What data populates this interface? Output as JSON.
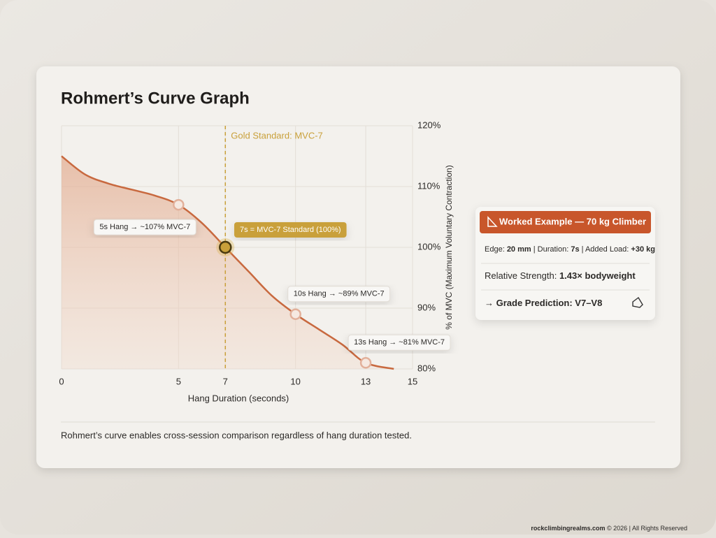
{
  "chart_data": {
    "type": "area",
    "title": "Rohmert’s Curve Graph",
    "x_label": "Hang Duration (seconds)",
    "y_label": "% of MVC (Maximum Voluntary Contraction)",
    "x": [
      0,
      1,
      2,
      3,
      4,
      5,
      6,
      7,
      8,
      9,
      10,
      11,
      12,
      13,
      14.2
    ],
    "series": [
      {
        "color": "#c8693f",
        "values": [
          115,
          112,
          110.5,
          109.5,
          108.5,
          107,
          104,
          100,
          96,
          92,
          89,
          86.5,
          84,
          81,
          80
        ]
      }
    ],
    "points": {
      "x": [
        5,
        7,
        10,
        13
      ],
      "values": [
        107,
        100,
        89,
        81
      ],
      "labels": [
        "5s Hang → ~107% MVC-7",
        "7s = MVC-7 Standard (100%)",
        "10s Hang → ~89% MVC-7",
        "13s Hang → ~81% MVC-7"
      ]
    },
    "reference_line": {
      "x": 7,
      "label": "Gold Standard: MVC-7",
      "color": "#c9a03a"
    },
    "xlim": [
      0,
      15
    ],
    "xticks": [
      0,
      5,
      7,
      10,
      13,
      15
    ],
    "ylim": [
      80,
      120
    ],
    "yticks": [
      {
        "value": 80,
        "label": "80%"
      },
      {
        "value": 90,
        "label": "90%"
      },
      {
        "value": 100,
        "label": "100%"
      },
      {
        "value": 110,
        "label": "110%"
      },
      {
        "value": 120,
        "label": "120%"
      }
    ],
    "grid": true
  },
  "card": {
    "title": "Worked Example — 70 kg Climber",
    "rows": [
      [
        {
          "text": "Edge: ",
          "bold": false
        },
        {
          "text": "20 mm",
          "bold": true
        },
        {
          "text": " | Duration: ",
          "bold": false
        },
        {
          "text": "7s",
          "bold": true
        },
        {
          "text": " | Added Load: ",
          "bold": false
        },
        {
          "text": "+30 kg",
          "bold": true
        }
      ],
      [
        {
          "text": "Relative Strength: ",
          "bold": false
        },
        {
          "text": "1.43× bodyweight",
          "bold": true
        }
      ],
      [
        {
          "text": "→ Grade Prediction: V7–V8",
          "bold": true
        }
      ]
    ]
  },
  "caption": "Rohmert’s curve enables cross-session comparison regardless of hang duration tested.",
  "footer": {
    "site": "rockclimbingrealms.com",
    "rights": " © 2026 | All Rights Reserved"
  }
}
